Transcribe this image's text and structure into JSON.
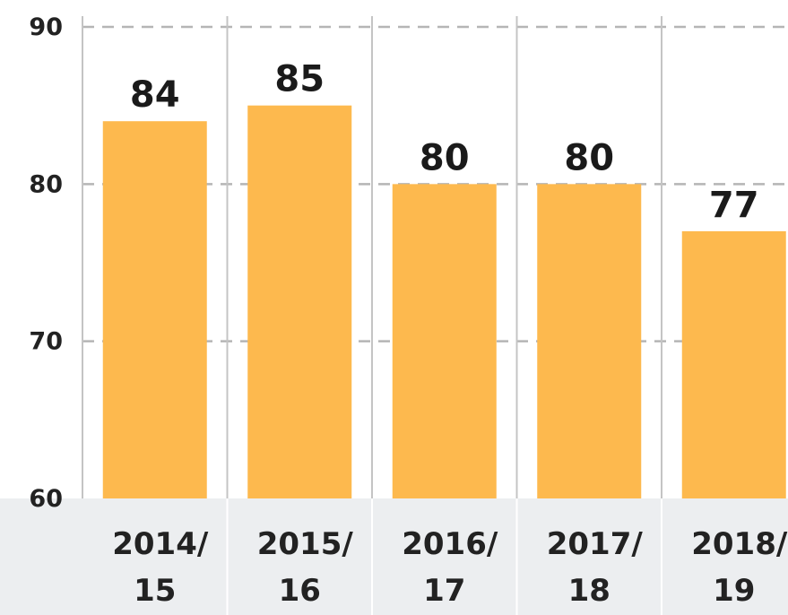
{
  "chart_data": {
    "type": "bar",
    "title": "",
    "xlabel": "",
    "ylabel": "",
    "categories": [
      "2014/15",
      "2015/16",
      "2016/17",
      "2017/18",
      "2018/19"
    ],
    "category_lines": [
      [
        "2014/",
        "15"
      ],
      [
        "2015/",
        "16"
      ],
      [
        "2016/",
        "17"
      ],
      [
        "2017/",
        "18"
      ],
      [
        "2018/",
        "19"
      ]
    ],
    "values": [
      84,
      85,
      80,
      80,
      77
    ],
    "value_labels": [
      "84",
      "85",
      "80",
      "80",
      "77"
    ],
    "ylim": [
      60,
      90
    ],
    "yticks": [
      60,
      70,
      80,
      90
    ],
    "ytick_labels": [
      "60",
      "70",
      "80",
      "90"
    ],
    "grid": "dashed horizontal",
    "legend": "none",
    "colors": {
      "bar": "#fdb94e",
      "gridline": "#b5b5b5",
      "category_band": "#eceef0",
      "separator": "#c4c4c4"
    }
  }
}
